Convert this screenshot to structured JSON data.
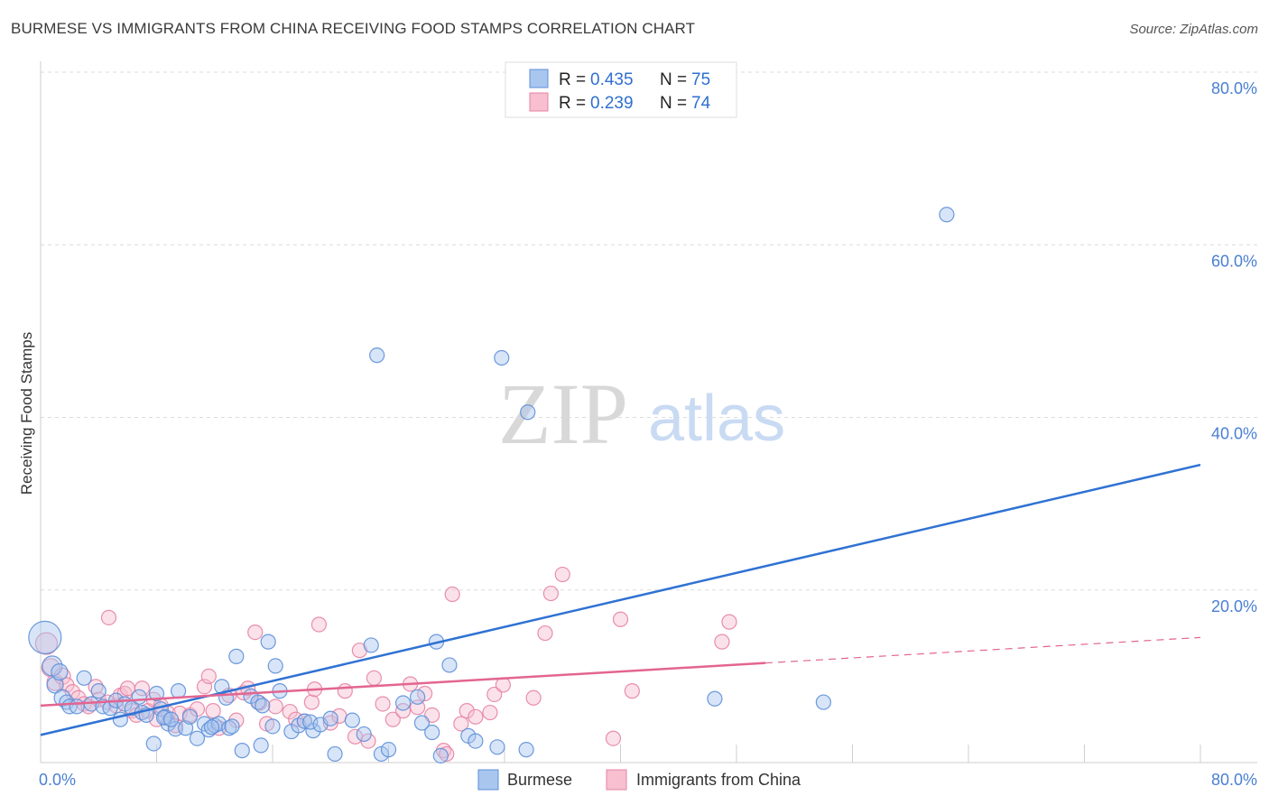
{
  "header": {
    "title": "BURMESE VS IMMIGRANTS FROM CHINA RECEIVING FOOD STAMPS CORRELATION CHART",
    "source": "Source: ZipAtlas.com"
  },
  "watermark": {
    "zip": "ZIP",
    "atlas": "atlas"
  },
  "colors": {
    "blue_fill": "#a9c6ef",
    "blue_stroke": "#5d8fd8",
    "blue_line": "#2f72d3",
    "pink_fill": "#f7bfd0",
    "pink_stroke": "#e583a3",
    "pink_line": "#e36591",
    "tick": "#4a7fd4",
    "grid": "#dcdcdc"
  },
  "legend": {
    "rows": [
      {
        "r_label": "R = ",
        "r_value": "0.435",
        "n_label": "N = ",
        "n_value": "75",
        "series": "blue"
      },
      {
        "r_label": "R = ",
        "r_value": "0.239",
        "n_label": "N = ",
        "n_value": "74",
        "series": "pink"
      }
    ]
  },
  "bottom_legend": [
    {
      "label": "Burmese",
      "series": "blue"
    },
    {
      "label": "Immigrants from China",
      "series": "pink"
    }
  ],
  "chart_data": {
    "type": "scatter",
    "title": "BURMESE VS IMMIGRANTS FROM CHINA RECEIVING FOOD STAMPS CORRELATION CHART",
    "xlabel": "",
    "ylabel": "Receiving Food Stamps",
    "xlim": [
      0,
      80
    ],
    "ylim": [
      0,
      80
    ],
    "x_tick_labels": [
      "0.0%",
      "80.0%"
    ],
    "y_ticks": [
      20,
      40,
      60,
      80
    ],
    "y_tick_labels": [
      "20.0%",
      "40.0%",
      "60.0%",
      "80.0%"
    ],
    "grid": true,
    "legend_position": "top-center",
    "series": [
      {
        "name": "Burmese",
        "color": "blue",
        "r": 0.435,
        "n": 75,
        "trend": {
          "x0": 0,
          "y0": 3.2,
          "x1": 80,
          "y1": 34.5,
          "dashed_from": null
        },
        "points": [
          [
            0.3,
            14.5,
            18
          ],
          [
            0.8,
            11.2,
            11
          ],
          [
            1.0,
            9.0,
            9
          ],
          [
            1.3,
            10.5,
            9
          ],
          [
            1.5,
            7.5,
            9
          ],
          [
            1.8,
            7.0,
            8
          ],
          [
            2.0,
            6.5,
            8
          ],
          [
            2.5,
            6.5,
            8
          ],
          [
            3.0,
            9.8,
            8
          ],
          [
            3.5,
            6.8,
            8
          ],
          [
            4.0,
            8.3,
            8
          ],
          [
            4.3,
            6.5,
            8
          ],
          [
            4.8,
            6.3,
            8
          ],
          [
            5.2,
            7.2,
            8
          ],
          [
            5.5,
            5.0,
            8
          ],
          [
            5.8,
            6.8,
            8
          ],
          [
            6.3,
            6.3,
            8
          ],
          [
            6.8,
            7.6,
            8
          ],
          [
            7.0,
            5.8,
            8
          ],
          [
            7.3,
            5.5,
            8
          ],
          [
            7.8,
            2.2,
            8
          ],
          [
            8.0,
            8.0,
            8
          ],
          [
            8.3,
            6.2,
            8
          ],
          [
            8.8,
            4.5,
            8
          ],
          [
            9.3,
            3.9,
            8
          ],
          [
            8.6,
            5.3,
            8
          ],
          [
            8.5,
            5.2,
            8
          ],
          [
            9.0,
            5.0,
            8
          ],
          [
            9.5,
            8.3,
            8
          ],
          [
            10.0,
            4.0,
            8
          ],
          [
            10.3,
            5.3,
            8
          ],
          [
            10.8,
            2.8,
            8
          ],
          [
            11.3,
            4.5,
            8
          ],
          [
            11.6,
            3.8,
            8
          ],
          [
            12.0,
            4.3,
            8
          ],
          [
            12.3,
            4.5,
            8
          ],
          [
            12.8,
            7.5,
            8
          ],
          [
            12.5,
            8.8,
            8
          ],
          [
            13.0,
            4.0,
            8
          ],
          [
            13.5,
            12.3,
            8
          ],
          [
            11.8,
            4.1,
            8
          ],
          [
            13.9,
            1.4,
            8
          ],
          [
            14.5,
            7.7,
            8
          ],
          [
            13.2,
            4.2,
            8
          ],
          [
            15.0,
            7.0,
            8
          ],
          [
            15.3,
            6.6,
            8
          ],
          [
            15.7,
            14.0,
            8
          ],
          [
            16.0,
            4.2,
            8
          ],
          [
            16.2,
            11.2,
            8
          ],
          [
            16.5,
            8.3,
            8
          ],
          [
            17.3,
            3.6,
            8
          ],
          [
            15.2,
            2.0,
            8
          ],
          [
            17.8,
            4.3,
            8
          ],
          [
            18.2,
            4.8,
            8
          ],
          [
            18.8,
            3.7,
            8
          ],
          [
            18.6,
            4.7,
            8
          ],
          [
            19.3,
            4.4,
            8
          ],
          [
            20.0,
            5.1,
            8
          ],
          [
            20.3,
            1.0,
            8
          ],
          [
            21.5,
            4.9,
            8
          ],
          [
            22.3,
            3.3,
            8
          ],
          [
            22.8,
            13.6,
            8
          ],
          [
            23.2,
            47.2,
            8
          ],
          [
            23.5,
            1.0,
            8
          ],
          [
            24.0,
            1.5,
            8
          ],
          [
            25.0,
            6.9,
            8
          ],
          [
            26.0,
            7.6,
            8
          ],
          [
            26.3,
            4.6,
            8
          ],
          [
            27.0,
            3.5,
            8
          ],
          [
            27.3,
            14.0,
            8
          ],
          [
            27.6,
            0.8,
            8
          ],
          [
            28.2,
            11.3,
            8
          ],
          [
            29.5,
            3.1,
            8
          ],
          [
            30.0,
            2.5,
            8
          ],
          [
            31.8,
            46.9,
            8
          ],
          [
            33.5,
            1.5,
            8
          ],
          [
            31.5,
            1.8,
            8
          ],
          [
            33.6,
            40.6,
            8
          ],
          [
            46.5,
            7.4,
            8
          ],
          [
            54.0,
            7.0,
            8
          ],
          [
            62.5,
            63.5,
            8
          ]
        ]
      },
      {
        "name": "Immigrants from China",
        "color": "pink",
        "r": 0.239,
        "n": 74,
        "trend": {
          "x0": 0,
          "y0": 6.6,
          "x1": 80,
          "y1": 14.5,
          "dashed_from": 50
        },
        "points": [
          [
            0.4,
            13.8,
            12
          ],
          [
            0.7,
            11.0,
            10
          ],
          [
            1.0,
            9.3,
            9
          ],
          [
            1.5,
            10.0,
            9
          ],
          [
            1.8,
            9.0,
            8
          ],
          [
            2.2,
            8.2,
            8
          ],
          [
            2.6,
            7.5,
            8
          ],
          [
            3.0,
            6.8,
            8
          ],
          [
            3.3,
            6.5,
            8
          ],
          [
            3.8,
            8.8,
            8
          ],
          [
            4.0,
            7.3,
            8
          ],
          [
            4.6,
            7.0,
            8
          ],
          [
            4.7,
            16.8,
            8
          ],
          [
            5.2,
            6.6,
            8
          ],
          [
            5.5,
            7.8,
            8
          ],
          [
            5.8,
            8.0,
            8
          ],
          [
            6.0,
            8.6,
            8
          ],
          [
            6.3,
            6.0,
            8
          ],
          [
            6.6,
            5.5,
            8
          ],
          [
            7.0,
            8.6,
            8
          ],
          [
            7.4,
            6.0,
            8
          ],
          [
            7.8,
            7.3,
            8
          ],
          [
            8.0,
            5.0,
            8
          ],
          [
            8.3,
            6.6,
            8
          ],
          [
            8.8,
            5.7,
            8
          ],
          [
            9.3,
            4.3,
            8
          ],
          [
            9.6,
            5.7,
            8
          ],
          [
            10.3,
            5.5,
            8
          ],
          [
            10.8,
            6.2,
            8
          ],
          [
            11.3,
            8.8,
            8
          ],
          [
            11.6,
            10.0,
            8
          ],
          [
            11.9,
            6.0,
            8
          ],
          [
            12.3,
            4.0,
            8
          ],
          [
            13.0,
            7.8,
            8
          ],
          [
            13.5,
            4.9,
            8
          ],
          [
            14.0,
            8.1,
            8
          ],
          [
            14.3,
            8.6,
            8
          ],
          [
            14.8,
            15.1,
            8
          ],
          [
            15.1,
            6.9,
            8
          ],
          [
            15.6,
            4.5,
            8
          ],
          [
            16.2,
            6.5,
            8
          ],
          [
            17.2,
            5.9,
            8
          ],
          [
            17.6,
            5.0,
            8
          ],
          [
            18.2,
            4.8,
            8
          ],
          [
            18.7,
            7.0,
            8
          ],
          [
            18.9,
            8.5,
            8
          ],
          [
            19.2,
            16.0,
            8
          ],
          [
            20.0,
            4.6,
            8
          ],
          [
            20.6,
            5.4,
            8
          ],
          [
            21.0,
            8.3,
            8
          ],
          [
            21.7,
            3.0,
            8
          ],
          [
            22.0,
            13.0,
            8
          ],
          [
            22.6,
            2.5,
            8
          ],
          [
            23.0,
            9.8,
            8
          ],
          [
            23.6,
            6.8,
            8
          ],
          [
            24.3,
            5.0,
            8
          ],
          [
            25.0,
            6.0,
            8
          ],
          [
            25.5,
            9.1,
            8
          ],
          [
            26.0,
            6.4,
            8
          ],
          [
            26.5,
            8.0,
            8
          ],
          [
            27.0,
            5.5,
            8
          ],
          [
            27.8,
            1.4,
            8
          ],
          [
            28.0,
            1.0,
            8
          ],
          [
            28.4,
            19.5,
            8
          ],
          [
            29.0,
            4.5,
            8
          ],
          [
            29.4,
            6.0,
            8
          ],
          [
            30.0,
            5.3,
            8
          ],
          [
            31.0,
            5.8,
            8
          ],
          [
            31.3,
            7.9,
            8
          ],
          [
            31.9,
            9.0,
            8
          ],
          [
            34.8,
            15.0,
            8
          ],
          [
            34.0,
            7.5,
            8
          ],
          [
            35.2,
            19.6,
            8
          ],
          [
            36.0,
            21.8,
            8
          ],
          [
            39.5,
            2.8,
            8
          ],
          [
            40.0,
            16.6,
            8
          ],
          [
            40.8,
            8.3,
            8
          ],
          [
            47.0,
            14.0,
            8
          ],
          [
            47.5,
            16.3,
            8
          ]
        ]
      }
    ]
  }
}
